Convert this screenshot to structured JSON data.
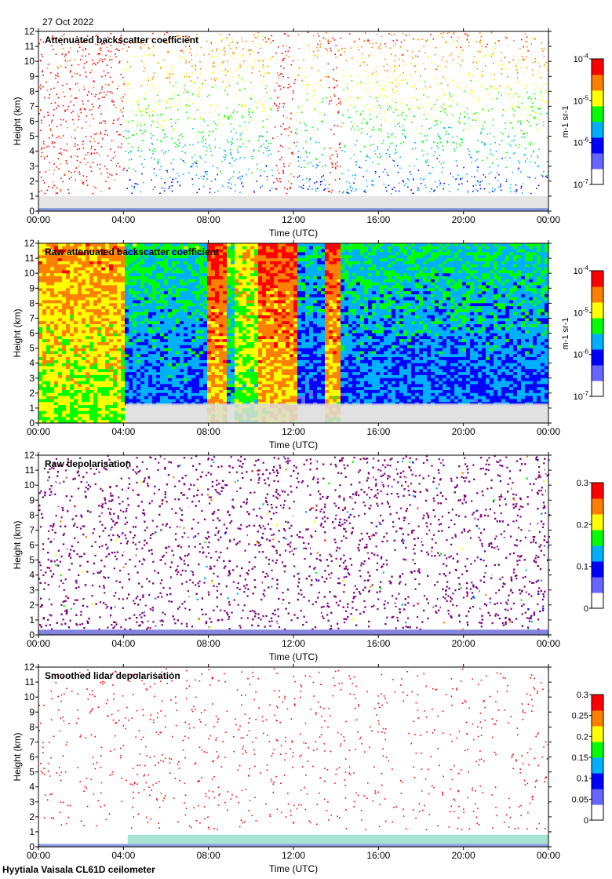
{
  "date": "27 Oct 2022",
  "footer": "Hyytiala Vaisala CL61D ceilometer",
  "chart_data": [
    {
      "type": "heatmap",
      "title": "Attenuated backscatter coefficient",
      "xlabel": "Time (UTC)",
      "ylabel": "Height (km)",
      "x_ticks": [
        "00:00",
        "04:00",
        "08:00",
        "12:00",
        "16:00",
        "20:00",
        "00:00"
      ],
      "xlim_hours": [
        0,
        24
      ],
      "y_ticks": [
        0,
        1,
        2,
        3,
        4,
        5,
        6,
        7,
        8,
        9,
        10,
        11,
        12
      ],
      "ylim": [
        0,
        12
      ],
      "colorbar": {
        "scale": "log",
        "ticks": [
          "10^-7",
          "10^-6",
          "10^-5",
          "10^-4"
        ],
        "units": "m^-1 sr^-1",
        "colormap": [
          "#ffffff",
          "#6666ff",
          "#0000ff",
          "#00b0ff",
          "#00ff00",
          "#ffff00",
          "#ff8000",
          "#ff0000",
          "#800080"
        ]
      },
      "pattern": "sparse"
    },
    {
      "type": "heatmap",
      "title": "Raw attenuated backscatter coefficient",
      "xlabel": "Time (UTC)",
      "ylabel": "Height (km)",
      "x_ticks": [
        "00:00",
        "04:00",
        "08:00",
        "12:00",
        "16:00",
        "20:00",
        "00:00"
      ],
      "xlim_hours": [
        0,
        24
      ],
      "y_ticks": [
        0,
        1,
        2,
        3,
        4,
        5,
        6,
        7,
        8,
        9,
        10,
        11,
        12
      ],
      "ylim": [
        0,
        12
      ],
      "colorbar": {
        "scale": "log",
        "ticks": [
          "10^-7",
          "10^-6",
          "10^-5",
          "10^-4"
        ],
        "units": "m^-1 sr^-1",
        "colormap": [
          "#ffffff",
          "#6666ff",
          "#0000ff",
          "#00b0ff",
          "#00ff00",
          "#ffff00",
          "#ff8000",
          "#ff0000",
          "#800080"
        ]
      },
      "pattern": "dense"
    },
    {
      "type": "heatmap",
      "title": "Raw depolarisation",
      "xlabel": "Time (UTC)",
      "ylabel": "Height (km)",
      "x_ticks": [
        "00:00",
        "04:00",
        "08:00",
        "12:00",
        "16:00",
        "20:00",
        "00:00"
      ],
      "xlim_hours": [
        0,
        24
      ],
      "y_ticks": [
        0,
        1,
        2,
        3,
        4,
        5,
        6,
        7,
        8,
        9,
        10,
        11,
        12
      ],
      "ylim": [
        0,
        12
      ],
      "colorbar": {
        "scale": "linear",
        "ticks": [
          "0",
          "0.1",
          "0.2",
          "0.3"
        ],
        "units": "",
        "colormap": [
          "#ffffff",
          "#6666ff",
          "#0000ff",
          "#00b0ff",
          "#00ff00",
          "#ffff00",
          "#ff8000",
          "#ff0000",
          "#800080"
        ]
      },
      "pattern": "noise"
    },
    {
      "type": "heatmap",
      "title": "Smoothed lidar depolarisation",
      "xlabel": "Time (UTC)",
      "ylabel": "Height (km)",
      "x_ticks": [
        "00:00",
        "04:00",
        "08:00",
        "12:00",
        "16:00",
        "20:00",
        "00:00"
      ],
      "xlim_hours": [
        0,
        24
      ],
      "y_ticks": [
        0,
        1,
        2,
        3,
        4,
        5,
        6,
        7,
        8,
        9,
        10,
        11,
        12
      ],
      "ylim": [
        0,
        12
      ],
      "colorbar": {
        "scale": "linear",
        "ticks": [
          "0",
          "0.05",
          "0.1",
          "0.15",
          "0.2",
          "0.25",
          "0.3"
        ],
        "units": "",
        "colormap": [
          "#ffffff",
          "#6666ff",
          "#0000ff",
          "#00b0ff",
          "#00ff00",
          "#ffff00",
          "#ff8000",
          "#ff0000",
          "#800080"
        ]
      },
      "pattern": "smoothed"
    }
  ]
}
